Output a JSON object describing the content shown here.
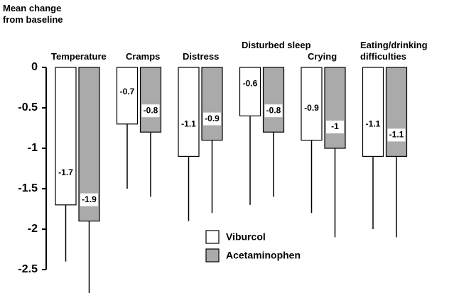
{
  "chart_data": {
    "type": "bar",
    "y_axis_label": "Mean change from baseline",
    "categories": [
      "Temperature",
      "Cramps",
      "Distress",
      "Disturbed sleep",
      "Crying",
      "Eating/drinking difficulties"
    ],
    "series": [
      {
        "name": "Viburcol",
        "color": "#ffffff",
        "values": [
          -1.7,
          -0.7,
          -1.1,
          -0.6,
          -0.9,
          -1.1
        ],
        "errors": [
          0.7,
          0.8,
          0.8,
          1.1,
          0.9,
          0.9
        ]
      },
      {
        "name": "Acetaminophen",
        "color": "#aaaaaa",
        "values": [
          -1.9,
          -0.8,
          -0.9,
          -0.8,
          -1.0,
          -1.1
        ],
        "errors": [
          0.9,
          0.8,
          0.9,
          0.8,
          1.1,
          1.0
        ]
      }
    ],
    "ylim": [
      -2.5,
      0
    ],
    "yticks": [
      0,
      -0.5,
      -1,
      -1.5,
      -2,
      -2.5
    ],
    "grid": false
  }
}
